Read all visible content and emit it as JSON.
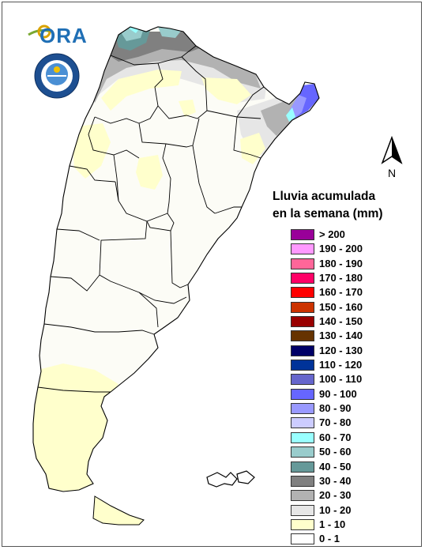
{
  "legend": {
    "title_line1": "Lluvia acumulada",
    "title_line2": "en la semana (mm)",
    "items": [
      {
        "label": "> 200",
        "color": "#990099"
      },
      {
        "label": "190 - 200",
        "color": "#ff99ff"
      },
      {
        "label": "180 - 190",
        "color": "#ff6699"
      },
      {
        "label": "170 - 180",
        "color": "#ff0066"
      },
      {
        "label": "160 - 170",
        "color": "#ff0000"
      },
      {
        "label": "150 - 160",
        "color": "#cc3300"
      },
      {
        "label": "140 - 150",
        "color": "#990000"
      },
      {
        "label": "130 - 140",
        "color": "#663300"
      },
      {
        "label": "120 - 130",
        "color": "#000066"
      },
      {
        "label": "110 - 120",
        "color": "#003399"
      },
      {
        "label": "100 - 110",
        "color": "#6666cc"
      },
      {
        "label": "90 - 100",
        "color": "#6666ff"
      },
      {
        "label": "80 - 90",
        "color": "#9999ff"
      },
      {
        "label": "70 - 80",
        "color": "#ccccff"
      },
      {
        "label": "60 - 70",
        "color": "#99ffff"
      },
      {
        "label": "50 - 60",
        "color": "#99cccc"
      },
      {
        "label": "40 - 50",
        "color": "#669999"
      },
      {
        "label": "30 - 40",
        "color": "#808080"
      },
      {
        "label": "20 - 30",
        "color": "#b2b2b2"
      },
      {
        "label": "10 - 20",
        "color": "#e6e6e6"
      },
      {
        "label": "1 - 10",
        "color": "#ffffcc"
      },
      {
        "label": "0 - 1",
        "color": "#ffffff"
      }
    ]
  },
  "north_label": "N",
  "logo_text": "ORA",
  "colors": {
    "country_fill": "#fcfcf6",
    "boundary": "#000000"
  }
}
